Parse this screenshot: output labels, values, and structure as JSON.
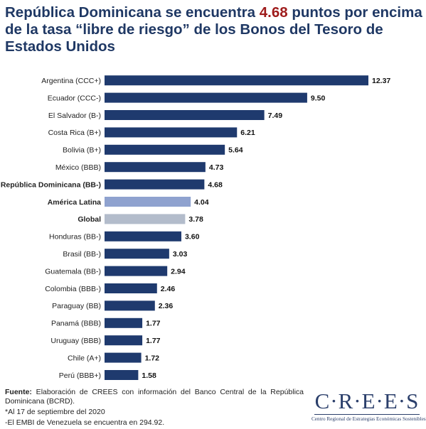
{
  "title": {
    "part1": "República Dominicana se encuentra ",
    "highlight": "4.68",
    "part2": " puntos por encima de la tasa “libre de riesgo” de los Bonos del Tesoro de Estados Unidos"
  },
  "colors": {
    "bar_default": "#1f3a6e",
    "bar_latam": "#8fa2cf",
    "bar_global": "#b3bccb",
    "title_highlight": "#9e1b1b"
  },
  "chart_data": {
    "type": "bar",
    "orientation": "horizontal",
    "categories": [
      "Argentina (CCC+)",
      "Ecuador (CCC-)",
      "El Salvador (B-)",
      "Costa Rica (B+)",
      "Bolivia (B+)",
      "México (BBB)",
      "República Dominicana (BB-)",
      "América Latina",
      "Global",
      "Honduras (BB-)",
      "Brasil (BB-)",
      "Guatemala (BB-)",
      "Colombia (BBB-)",
      "Paraguay (BB)",
      "Panamá (BBB)",
      "Uruguay (BBB)",
      "Chile (A+)",
      "Perú (BBB+)"
    ],
    "values": [
      12.37,
      9.5,
      7.49,
      6.21,
      5.64,
      4.73,
      4.68,
      4.04,
      3.78,
      3.6,
      3.03,
      2.94,
      2.46,
      2.36,
      1.77,
      1.77,
      1.72,
      1.58
    ],
    "value_labels": [
      "12.37",
      "9.50",
      "7.49",
      "6.21",
      "5.64",
      "4.73",
      "4.68",
      "4.04",
      "3.78",
      "3.60",
      "3.03",
      "2.94",
      "2.46",
      "2.36",
      "1.77",
      "1.77",
      "1.72",
      "1.58"
    ],
    "bold_categories": [
      "República Dominicana (BB-)",
      "América Latina",
      "Global"
    ],
    "highlight_colors": {
      "América Latina": "#8fa2cf",
      "Global": "#b3bccb"
    },
    "xlim": [
      0,
      12.37
    ],
    "grid": false,
    "legend": "none"
  },
  "footer": {
    "source_label": "Fuente:",
    "source_text": " Elaboración de CREES con información del Banco Central de la República Dominicana (BCRD).",
    "note1": "*Al 17 de septiembre del 2020",
    "note2": "-El EMBI de Venezuela se encuentra en 294.92."
  },
  "logo": {
    "word": "C·R·E·E·S",
    "subtitle": "Centro Regional de Estrategias Económicas Sostenibles"
  }
}
